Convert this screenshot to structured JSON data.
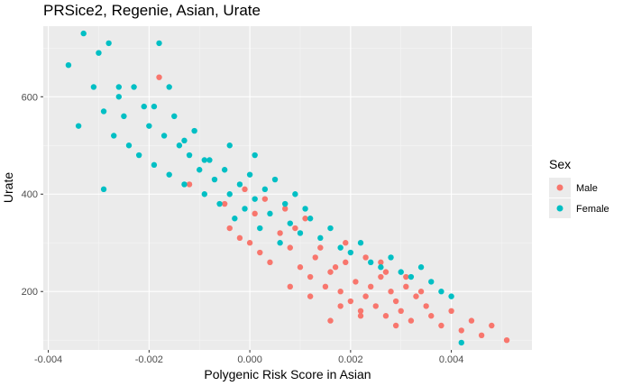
{
  "chart_data": {
    "type": "scatter",
    "title": "PRSice2, Regenie, Asian, Urate",
    "xlabel": "Polygenic Risk Score in Asian",
    "ylabel": "Urate",
    "xlim": [
      -0.0041,
      0.0056
    ],
    "ylim": [
      80,
      745
    ],
    "x_ticks": [
      -0.004,
      -0.002,
      0.0,
      0.002,
      0.004
    ],
    "x_tick_labels": [
      "-0.004",
      "-0.002",
      "0.000",
      "0.002",
      "0.004"
    ],
    "y_ticks": [
      200,
      400,
      600
    ],
    "y_tick_labels": [
      "200",
      "400",
      "600"
    ],
    "grid": true,
    "legend": {
      "title": "Sex",
      "placement": "right",
      "entries": [
        {
          "label": "Male",
          "color": "#F8766D"
        },
        {
          "label": "Female",
          "color": "#00BFC4"
        }
      ]
    },
    "series": [
      {
        "name": "Male",
        "color": "#F8766D",
        "x": [
          -0.0018,
          -0.0012,
          -0.0005,
          -0.0004,
          -0.0002,
          0.0,
          0.0002,
          0.0004,
          0.0006,
          0.0008,
          0.001,
          0.0012,
          0.0013,
          0.0015,
          0.0016,
          0.0018,
          0.0019,
          0.002,
          0.0021,
          0.0022,
          0.0023,
          0.0024,
          0.0025,
          0.0026,
          0.0027,
          0.0028,
          0.0029,
          0.003,
          0.0031,
          0.0032,
          0.0033,
          0.0035,
          0.0036,
          0.0038,
          0.004,
          0.0042,
          0.0044,
          0.0046,
          0.0048,
          0.0051,
          0.0009,
          0.0014,
          0.0017,
          0.0011,
          0.0007,
          0.0003,
          0.0001,
          -0.0001,
          0.0019,
          0.0023,
          0.0027,
          0.0031,
          0.0034,
          0.0022,
          0.0018,
          0.0026,
          0.0029,
          0.0012,
          0.0008,
          0.0016
        ],
        "y": [
          640,
          420,
          380,
          330,
          310,
          300,
          280,
          260,
          320,
          290,
          250,
          230,
          270,
          210,
          240,
          200,
          260,
          180,
          220,
          160,
          190,
          210,
          170,
          230,
          150,
          200,
          180,
          160,
          210,
          140,
          190,
          170,
          150,
          130,
          160,
          120,
          140,
          110,
          130,
          100,
          330,
          290,
          250,
          350,
          370,
          390,
          360,
          410,
          300,
          270,
          240,
          230,
          200,
          150,
          170,
          260,
          130,
          190,
          210,
          140
        ]
      },
      {
        "name": "Female",
        "color": "#00BFC4",
        "x": [
          -0.0036,
          -0.0034,
          -0.0033,
          -0.0031,
          -0.003,
          -0.0029,
          -0.0028,
          -0.0027,
          -0.0026,
          -0.0025,
          -0.0024,
          -0.0023,
          -0.0022,
          -0.0021,
          -0.002,
          -0.0019,
          -0.0018,
          -0.0017,
          -0.0016,
          -0.0015,
          -0.0014,
          -0.0013,
          -0.0012,
          -0.0011,
          -0.001,
          -0.0009,
          -0.0008,
          -0.0007,
          -0.0006,
          -0.0005,
          -0.0004,
          -0.0003,
          -0.0002,
          -0.0001,
          0.0,
          0.0001,
          0.0002,
          0.0003,
          0.0004,
          0.0005,
          0.0006,
          0.0007,
          0.0008,
          0.0009,
          0.001,
          0.0011,
          0.0012,
          0.0014,
          0.0016,
          0.0018,
          0.002,
          0.0022,
          0.0024,
          0.0026,
          0.0028,
          0.003,
          0.0032,
          0.0034,
          0.0036,
          0.0038,
          0.004,
          0.0042,
          -0.0029,
          -0.0026,
          -0.0019,
          -0.0013,
          -0.0009,
          -0.0004,
          0.0001,
          -0.0016
        ],
        "y": [
          665,
          540,
          730,
          620,
          690,
          570,
          710,
          520,
          600,
          560,
          500,
          620,
          480,
          580,
          540,
          460,
          710,
          520,
          440,
          560,
          500,
          420,
          480,
          530,
          450,
          400,
          470,
          430,
          380,
          450,
          400,
          350,
          420,
          370,
          440,
          390,
          330,
          410,
          360,
          430,
          300,
          380,
          340,
          400,
          320,
          370,
          350,
          310,
          330,
          290,
          280,
          300,
          260,
          250,
          270,
          240,
          230,
          250,
          220,
          200,
          190,
          95,
          410,
          620,
          580,
          510,
          470,
          500,
          480,
          620
        ]
      }
    ]
  }
}
